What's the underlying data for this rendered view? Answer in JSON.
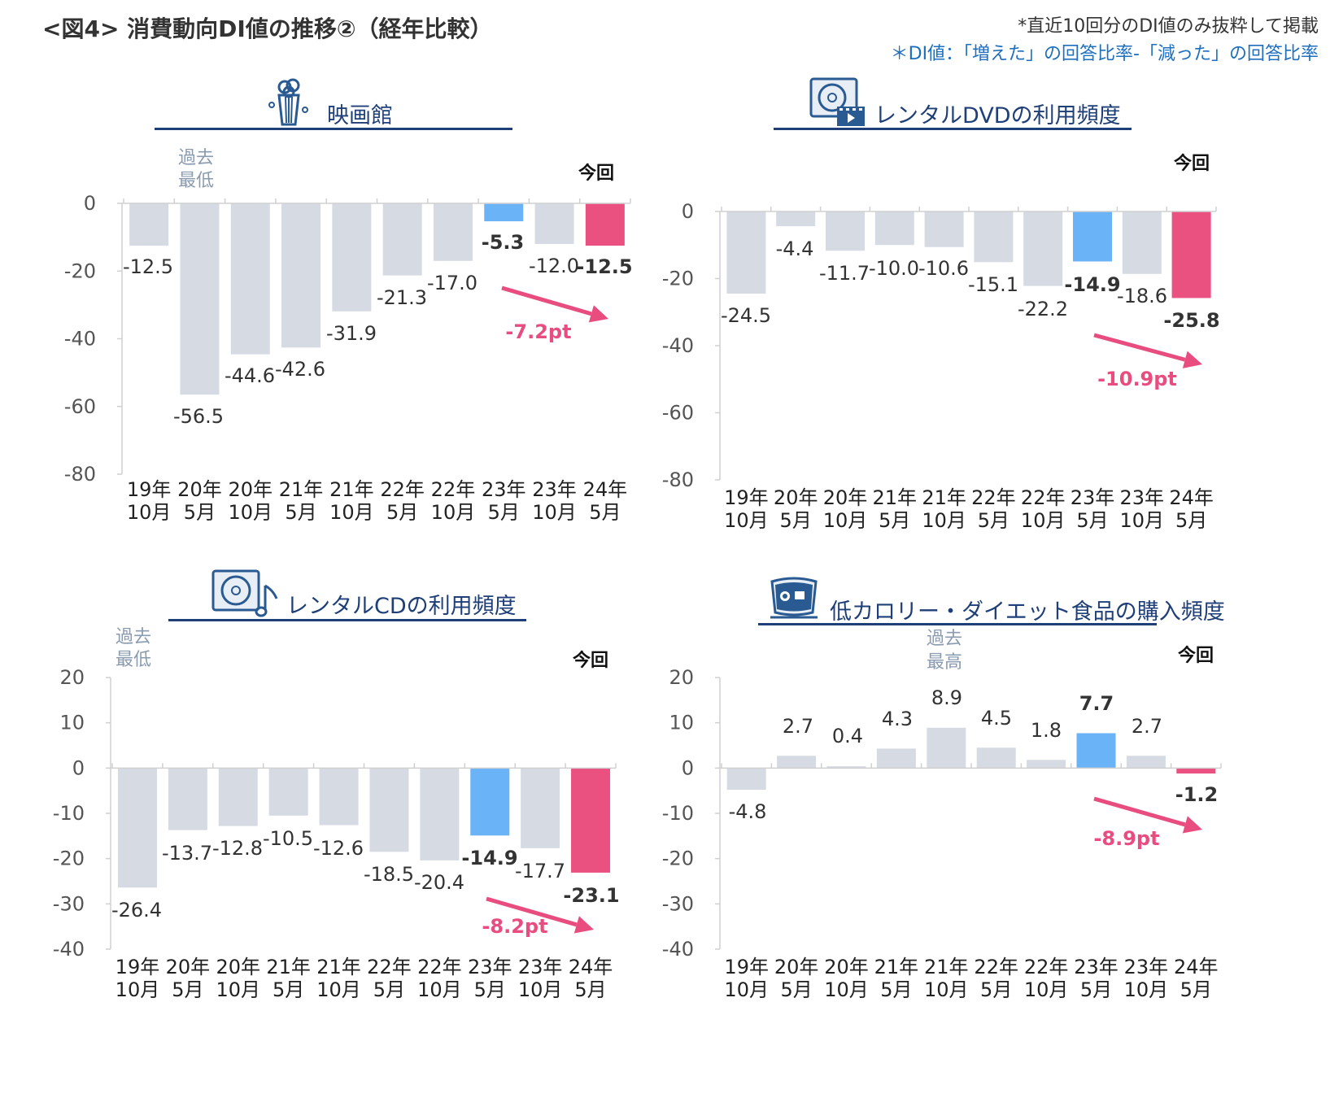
{
  "page": {
    "title": "<図4> 消費動向DI値の推移②（経年比較）",
    "note1": "*直近10回分のDI値のみ抜粋して掲載",
    "note2": "＊DI値：「増えた」の回答比率-「減った」の回答比率"
  },
  "colors": {
    "normal": "#d5dae3",
    "highlight": "#6ab3f7",
    "current": "#ea5080",
    "arrow": "#e94d7f",
    "title": "#1f3f78"
  },
  "chart_data": [
    {
      "type": "bar",
      "title": "映画館",
      "icon": "popcorn-icon",
      "categories": [
        "19年 10月",
        "20年 5月",
        "20年 10月",
        "21年 5月",
        "21年 10月",
        "22年 5月",
        "22年 10月",
        "23年 5月",
        "23年 10月",
        "24年 5月"
      ],
      "values": [
        -12.5,
        -56.5,
        -44.6,
        -42.6,
        -31.9,
        -21.3,
        -17.0,
        -5.3,
        -12.0,
        -12.5
      ],
      "value_labels": [
        "-12.5",
        "-56.5",
        "-44.6",
        "-42.6",
        "-31.9",
        "-21.3",
        "-17.0",
        "-5.3",
        "-12.0",
        "-12.5"
      ],
      "highlight_index": 7,
      "current_index": 9,
      "ylim": [
        -80,
        0
      ],
      "yticks": [
        "0",
        "-20",
        "-40",
        "-60",
        "-80"
      ],
      "konkai_label": "今回",
      "annotation": {
        "index": 1,
        "text": [
          "過去",
          "最低"
        ]
      },
      "diff_label": "-7.2pt"
    },
    {
      "type": "bar",
      "title": "レンタルDVDの利用頻度",
      "icon": "dvd-icon",
      "categories": [
        "19年 10月",
        "20年 5月",
        "20年 10月",
        "21年 5月",
        "21年 10月",
        "22年 5月",
        "22年 10月",
        "23年 5月",
        "23年 10月",
        "24年 5月"
      ],
      "values": [
        -24.5,
        -4.4,
        -11.7,
        -10.0,
        -10.6,
        -15.1,
        -22.2,
        -14.9,
        -18.6,
        -25.8
      ],
      "value_labels": [
        "-24.5",
        "-4.4",
        "-11.7",
        "-10.0",
        "-10.6",
        "-15.1",
        "-22.2",
        "-14.9",
        "-18.6",
        "-25.8"
      ],
      "highlight_index": 7,
      "current_index": 9,
      "ylim": [
        -80,
        0
      ],
      "yticks": [
        "0",
        "-20",
        "-40",
        "-60",
        "-80"
      ],
      "konkai_label": "今回",
      "diff_label": "-10.9pt"
    },
    {
      "type": "bar",
      "title": "レンタルCDの利用頻度",
      "icon": "cd-icon",
      "categories": [
        "19年 10月",
        "20年 5月",
        "20年 10月",
        "21年 5月",
        "21年 10月",
        "22年 5月",
        "22年 10月",
        "23年 5月",
        "23年 10月",
        "24年 5月"
      ],
      "values": [
        -26.4,
        -13.7,
        -12.8,
        -10.5,
        -12.6,
        -18.5,
        -20.4,
        -14.9,
        -17.7,
        -23.1
      ],
      "value_labels": [
        "-26.4",
        "-13.7",
        "-12.8",
        "-10.5",
        "-12.6",
        "-18.5",
        "-20.4",
        "-14.9",
        "-17.7",
        "-23.1"
      ],
      "highlight_index": 7,
      "current_index": 9,
      "ylim": [
        -40,
        20
      ],
      "yticks": [
        "20",
        "10",
        "0",
        "-10",
        "-20",
        "-30",
        "-40"
      ],
      "konkai_label": "今回",
      "annotation": {
        "index": 0,
        "text": [
          "過去",
          "最低"
        ]
      },
      "diff_label": "-8.2pt"
    },
    {
      "type": "bar",
      "title": "低カロリー・ダイエット食品の購入頻度",
      "icon": "diet-food-icon",
      "categories": [
        "19年 10月",
        "20年 5月",
        "20年 10月",
        "21年 5月",
        "21年 10月",
        "22年 5月",
        "22年 10月",
        "23年 5月",
        "23年 10月",
        "24年 5月"
      ],
      "values": [
        -4.8,
        2.7,
        0.4,
        4.3,
        8.9,
        4.5,
        1.8,
        7.7,
        2.7,
        -1.2
      ],
      "value_labels": [
        "-4.8",
        "2.7",
        "0.4",
        "4.3",
        "8.9",
        "4.5",
        "1.8",
        "7.7",
        "2.7",
        "-1.2"
      ],
      "highlight_index": 7,
      "current_index": 9,
      "ylim": [
        -40,
        20
      ],
      "yticks": [
        "20",
        "10",
        "0",
        "-10",
        "-20",
        "-30",
        "-40"
      ],
      "konkai_label": "今回",
      "annotation": {
        "index": 4,
        "text": [
          "過去",
          "最高"
        ]
      },
      "diff_label": "-8.9pt"
    }
  ]
}
